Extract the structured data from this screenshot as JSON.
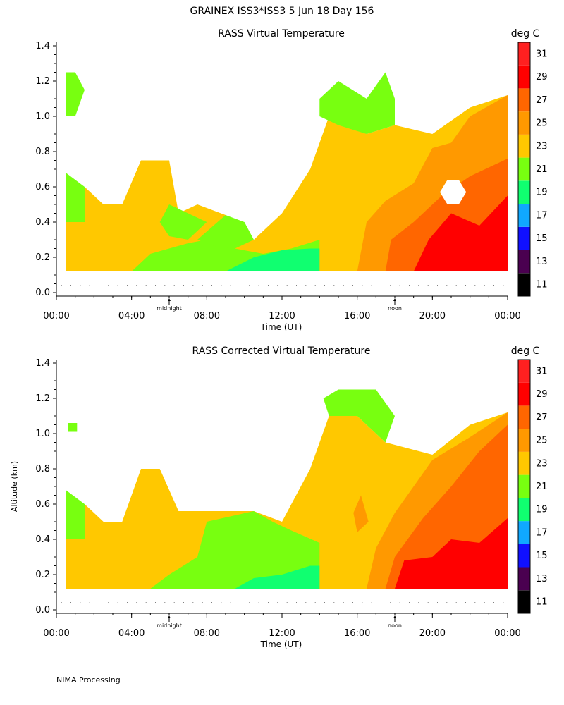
{
  "header": {
    "title": "GRAINEX ISS3*ISS3    5 Jun 18 Day 156"
  },
  "footer": {
    "text": "NIMA Processing"
  },
  "chart_data": [
    {
      "type": "heatmap",
      "title": "RASS Virtual Temperature",
      "xlabel": "Time (UT)",
      "ylabel": "",
      "xticks": [
        "00:00",
        "04:00",
        "08:00",
        "12:00",
        "16:00",
        "20:00",
        "00:00"
      ],
      "xlim_hours": [
        0,
        24
      ],
      "x_markers": [
        {
          "label": "midnight",
          "hour": 6
        },
        {
          "label": "noon",
          "hour": 18
        }
      ],
      "yticks": [
        "0.0",
        "0.2",
        "0.4",
        "0.6",
        "0.8",
        "1.0",
        "1.2",
        "1.4"
      ],
      "ylim": [
        0,
        1.45
      ],
      "colorbar": {
        "unit": "deg C",
        "levels": [
          "11",
          "13",
          "15",
          "17",
          "19",
          "21",
          "23",
          "25",
          "27",
          "29",
          "31"
        ],
        "colors": [
          "#000000",
          "#4a0050",
          "#1010ff",
          "#10a8ff",
          "#10ff70",
          "#78ff10",
          "#ffc800",
          "#ff9900",
          "#ff6600",
          "#ff0000",
          "#ff2020"
        ]
      },
      "regions": [
        {
          "temp": 23,
          "pts": [
            [
              0.5,
              0.12
            ],
            [
              0.5,
              0.62
            ],
            [
              1.5,
              0.6
            ],
            [
              2.5,
              0.5
            ],
            [
              3.5,
              0.5
            ],
            [
              4.5,
              0.75
            ],
            [
              6,
              0.75
            ],
            [
              6.5,
              0.45
            ],
            [
              7.5,
              0.5
            ],
            [
              9,
              0.44
            ],
            [
              10.5,
              0.3
            ],
            [
              12,
              0.45
            ],
            [
              13.5,
              0.7
            ],
            [
              14.5,
              1.0
            ],
            [
              16.5,
              0.9
            ],
            [
              18,
              0.95
            ],
            [
              20,
              0.9
            ],
            [
              22,
              1.05
            ],
            [
              24,
              1.12
            ],
            [
              24,
              0.12
            ]
          ]
        },
        {
          "temp": 21,
          "pts": [
            [
              0.5,
              0.12
            ],
            [
              0.5,
              0.68
            ],
            [
              1.5,
              0.6
            ],
            [
              1.5,
              0.4
            ],
            [
              0.5,
              0.4
            ]
          ]
        },
        {
          "temp": 21,
          "pts": [
            [
              0.5,
              1.0
            ],
            [
              0.5,
              1.25
            ],
            [
              1,
              1.25
            ],
            [
              1.5,
              1.15
            ],
            [
              1,
              1.0
            ]
          ]
        },
        {
          "temp": 21,
          "pts": [
            [
              4,
              0.12
            ],
            [
              5,
              0.22
            ],
            [
              7,
              0.28
            ],
            [
              8,
              0.3
            ],
            [
              9.5,
              0.25
            ],
            [
              11,
              0.22
            ],
            [
              12.5,
              0.25
            ],
            [
              14,
              0.3
            ],
            [
              14,
              0.12
            ]
          ]
        },
        {
          "temp": 21,
          "pts": [
            [
              5.5,
              0.4
            ],
            [
              6,
              0.5
            ],
            [
              7,
              0.45
            ],
            [
              8,
              0.4
            ],
            [
              7,
              0.3
            ],
            [
              6,
              0.32
            ]
          ]
        },
        {
          "temp": 21,
          "pts": [
            [
              7.5,
              0.3
            ],
            [
              9,
              0.44
            ],
            [
              10,
              0.4
            ],
            [
              10.5,
              0.3
            ],
            [
              9.5,
              0.25
            ],
            [
              8.5,
              0.26
            ]
          ]
        },
        {
          "temp": 21,
          "pts": [
            [
              14,
              1.1
            ],
            [
              15,
              1.2
            ],
            [
              16.5,
              1.1
            ],
            [
              17.5,
              1.25
            ],
            [
              18,
              1.1
            ],
            [
              18,
              0.95
            ],
            [
              16.5,
              0.9
            ],
            [
              15,
              0.95
            ],
            [
              14,
              1.0
            ]
          ]
        },
        {
          "temp": 19,
          "pts": [
            [
              9,
              0.12
            ],
            [
              10.5,
              0.2
            ],
            [
              12,
              0.24
            ],
            [
              13.5,
              0.25
            ],
            [
              14,
              0.25
            ],
            [
              14,
              0.12
            ]
          ]
        },
        {
          "temp": 25,
          "pts": [
            [
              16,
              0.12
            ],
            [
              16.5,
              0.4
            ],
            [
              17.5,
              0.52
            ],
            [
              19,
              0.62
            ],
            [
              20,
              0.82
            ],
            [
              21,
              0.85
            ],
            [
              22,
              1.0
            ],
            [
              24,
              1.12
            ],
            [
              24,
              0.12
            ]
          ]
        },
        {
          "temp": 27,
          "pts": [
            [
              17.5,
              0.12
            ],
            [
              17.8,
              0.3
            ],
            [
              19,
              0.4
            ],
            [
              20.5,
              0.55
            ],
            [
              22,
              0.66
            ],
            [
              24,
              0.76
            ],
            [
              24,
              0.12
            ]
          ]
        },
        {
          "temp": 29,
          "pts": [
            [
              19,
              0.12
            ],
            [
              19.8,
              0.3
            ],
            [
              21,
              0.45
            ],
            [
              22.5,
              0.38
            ],
            [
              24,
              0.55
            ],
            [
              24,
              0.12
            ]
          ]
        }
      ],
      "gaps": [
        [
          [
            20.4,
            0.57
          ],
          [
            20.8,
            0.64
          ],
          [
            21.4,
            0.64
          ],
          [
            21.8,
            0.57
          ],
          [
            21.4,
            0.5
          ],
          [
            20.8,
            0.5
          ]
        ]
      ]
    },
    {
      "type": "heatmap",
      "title": "RASS Corrected Virtual Temperature",
      "xlabel": "Time (UT)",
      "ylabel": "Altitude (km)",
      "xticks": [
        "00:00",
        "04:00",
        "08:00",
        "12:00",
        "16:00",
        "20:00",
        "00:00"
      ],
      "xlim_hours": [
        0,
        24
      ],
      "x_markers": [
        {
          "label": "midnight",
          "hour": 6
        },
        {
          "label": "noon",
          "hour": 18
        }
      ],
      "yticks": [
        "0.0",
        "0.2",
        "0.4",
        "0.6",
        "0.8",
        "1.0",
        "1.2",
        "1.4"
      ],
      "ylim": [
        0,
        1.45
      ],
      "colorbar": {
        "unit": "deg C",
        "levels": [
          "11",
          "13",
          "15",
          "17",
          "19",
          "21",
          "23",
          "25",
          "27",
          "29",
          "31"
        ],
        "colors": [
          "#000000",
          "#4a0050",
          "#1010ff",
          "#10a8ff",
          "#10ff70",
          "#78ff10",
          "#ffc800",
          "#ff9900",
          "#ff6600",
          "#ff0000",
          "#ff2020"
        ]
      },
      "regions": [
        {
          "temp": 23,
          "pts": [
            [
              0.5,
              0.12
            ],
            [
              0.5,
              0.62
            ],
            [
              1.5,
              0.6
            ],
            [
              2.5,
              0.5
            ],
            [
              3.5,
              0.5
            ],
            [
              4.5,
              0.8
            ],
            [
              5.5,
              0.8
            ],
            [
              6.5,
              0.56
            ],
            [
              10.5,
              0.56
            ],
            [
              12,
              0.5
            ],
            [
              13.5,
              0.8
            ],
            [
              14.5,
              1.1
            ],
            [
              16,
              1.1
            ],
            [
              17.5,
              0.95
            ],
            [
              20,
              0.88
            ],
            [
              22,
              1.05
            ],
            [
              24,
              1.12
            ],
            [
              24,
              0.12
            ]
          ]
        },
        {
          "temp": 21,
          "pts": [
            [
              0.5,
              0.12
            ],
            [
              0.5,
              0.68
            ],
            [
              1.5,
              0.6
            ],
            [
              1.5,
              0.4
            ],
            [
              0.5,
              0.4
            ]
          ]
        },
        {
          "temp": 21,
          "pts": [
            [
              0.6,
              1.01
            ],
            [
              0.6,
              1.06
            ],
            [
              1.1,
              1.06
            ],
            [
              1.1,
              1.01
            ]
          ]
        },
        {
          "temp": 21,
          "pts": [
            [
              5,
              0.12
            ],
            [
              6,
              0.2
            ],
            [
              7.5,
              0.3
            ],
            [
              8,
              0.5
            ],
            [
              10.5,
              0.56
            ],
            [
              11.5,
              0.5
            ],
            [
              12.5,
              0.45
            ],
            [
              14,
              0.38
            ],
            [
              14,
              0.12
            ]
          ]
        },
        {
          "temp": 21,
          "pts": [
            [
              14.2,
              1.2
            ],
            [
              15,
              1.25
            ],
            [
              17,
              1.25
            ],
            [
              18,
              1.1
            ],
            [
              17.5,
              0.95
            ],
            [
              16,
              1.1
            ],
            [
              14.5,
              1.1
            ]
          ]
        },
        {
          "temp": 19,
          "pts": [
            [
              9.5,
              0.12
            ],
            [
              10.5,
              0.18
            ],
            [
              12,
              0.2
            ],
            [
              13.5,
              0.25
            ],
            [
              14,
              0.25
            ],
            [
              14,
              0.12
            ]
          ]
        },
        {
          "temp": 25,
          "pts": [
            [
              16.5,
              0.12
            ],
            [
              17,
              0.35
            ],
            [
              18,
              0.55
            ],
            [
              19,
              0.7
            ],
            [
              20,
              0.85
            ],
            [
              22,
              0.98
            ],
            [
              24,
              1.12
            ],
            [
              24,
              0.12
            ]
          ]
        },
        {
          "temp": 25,
          "pts": [
            [
              15.8,
              0.55
            ],
            [
              16.2,
              0.65
            ],
            [
              16.6,
              0.5
            ],
            [
              16,
              0.44
            ]
          ]
        },
        {
          "temp": 27,
          "pts": [
            [
              17.5,
              0.12
            ],
            [
              18,
              0.3
            ],
            [
              19.5,
              0.52
            ],
            [
              21,
              0.7
            ],
            [
              22.5,
              0.9
            ],
            [
              24,
              1.05
            ],
            [
              24,
              0.12
            ]
          ]
        },
        {
          "temp": 29,
          "pts": [
            [
              18,
              0.12
            ],
            [
              18.5,
              0.28
            ],
            [
              20,
              0.3
            ],
            [
              21,
              0.4
            ],
            [
              22.5,
              0.38
            ],
            [
              24,
              0.52
            ],
            [
              24,
              0.12
            ]
          ]
        }
      ],
      "gaps": []
    }
  ]
}
